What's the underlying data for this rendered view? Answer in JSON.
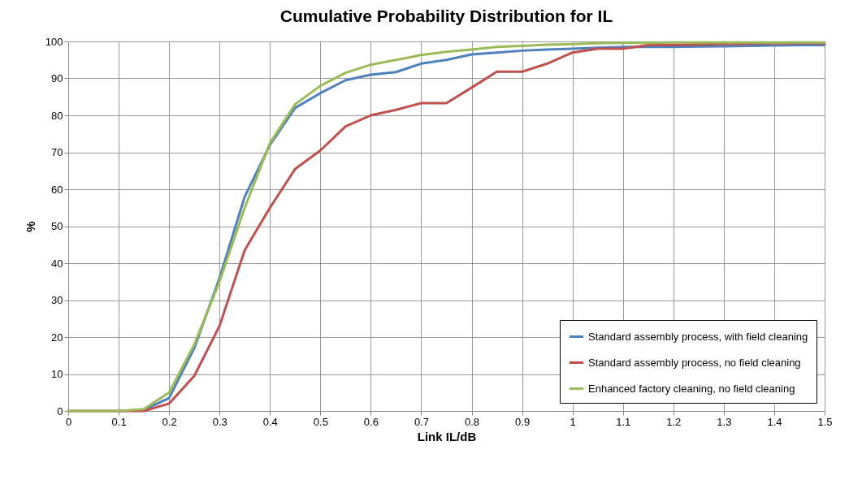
{
  "chart_data": {
    "type": "line",
    "title": "Cumulative Probability Distribution for IL",
    "xlabel": "Link IL/dB",
    "ylabel": "%",
    "x": [
      0,
      0.05,
      0.1,
      0.15,
      0.2,
      0.25,
      0.3,
      0.35,
      0.4,
      0.45,
      0.5,
      0.55,
      0.6,
      0.65,
      0.7,
      0.75,
      0.8,
      0.85,
      0.9,
      0.95,
      1,
      1.05,
      1.1,
      1.15,
      1.2,
      1.25,
      1.3,
      1.35,
      1.4,
      1.45,
      1.5
    ],
    "series": [
      {
        "name": "Standard assembly process, with field cleaning",
        "color": "#4f81bd",
        "values": [
          null,
          null,
          0,
          0.3,
          3.5,
          17,
          36,
          58,
          72,
          82,
          86,
          89.5,
          91,
          91.7,
          94,
          95,
          96.5,
          97,
          97.5,
          97.8,
          98,
          98.3,
          98.5,
          98.5,
          98.5,
          98.6,
          98.7,
          98.8,
          98.9,
          99,
          99
        ]
      },
      {
        "name": "Standard assembly process, no field cleaning",
        "color": "#c0504d",
        "values": [
          0,
          0,
          0,
          0,
          2,
          9.5,
          23,
          43.5,
          55,
          65.5,
          70.5,
          77,
          80,
          81.5,
          83.3,
          83.3,
          87.5,
          91.8,
          91.8,
          94,
          97,
          98,
          98,
          99,
          99,
          99.2,
          99.3,
          99.4,
          99.5,
          99.5,
          99.5
        ]
      },
      {
        "name": "Enhanced factory cleaning, no field cleaning",
        "color": "#9bbb59",
        "values": [
          0,
          0,
          0,
          0.5,
          5,
          18,
          35,
          55,
          72.5,
          83,
          88,
          91.5,
          93.7,
          95,
          96.3,
          97.2,
          97.8,
          98.5,
          98.8,
          99.1,
          99.3,
          99.5,
          99.6,
          99.6,
          99.7,
          99.7,
          99.7,
          99.7,
          99.7,
          99.7,
          99.7
        ]
      }
    ],
    "xlim": [
      0,
      1.5
    ],
    "xticks": [
      0,
      0.1,
      0.2,
      0.3,
      0.4,
      0.5,
      0.6,
      0.7,
      0.8,
      0.9,
      1,
      1.1,
      1.2,
      1.3,
      1.4,
      1.5
    ],
    "ylim": [
      0,
      100
    ],
    "yticks": [
      0,
      10,
      20,
      30,
      40,
      50,
      60,
      70,
      80,
      90,
      100
    ],
    "grid": true,
    "legend": "bottom right",
    "marker": "none",
    "line_style": "solid"
  }
}
